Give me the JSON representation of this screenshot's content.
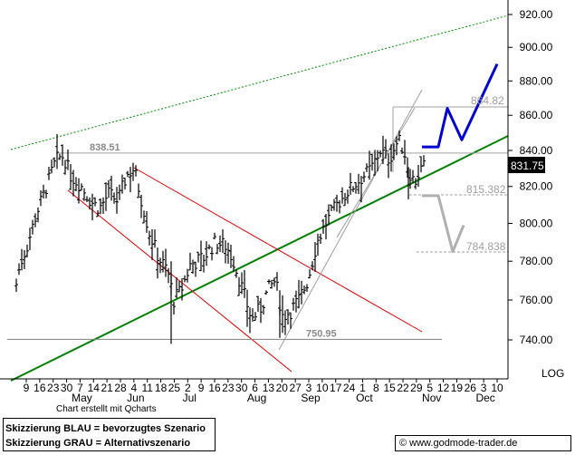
{
  "chart_data": {
    "type": "ohlc",
    "scale": "log",
    "y_ticks": [
      "920.00",
      "900.00",
      "880.00",
      "860.00",
      "840.00",
      "820.00",
      "800.00",
      "780.00",
      "760.00",
      "740.00"
    ],
    "y_axis_label": "LOG",
    "last_price": "831.75",
    "x_day_ticks": [
      "9",
      "16",
      "23",
      "30",
      "7",
      "14",
      "21",
      "28",
      "4",
      "11",
      "18",
      "25",
      "2",
      "9",
      "16",
      "23",
      "30",
      "6",
      "13",
      "20",
      "27",
      "3",
      "10",
      "17",
      "24",
      "1",
      "8",
      "15",
      "22",
      "29",
      "5",
      "12",
      "19",
      "26",
      "3",
      "10"
    ],
    "x_month_labels": [
      "May",
      "Jun",
      "Jul",
      "Aug",
      "Sep",
      "Oct",
      "Nov",
      "Dec"
    ],
    "levels": [
      {
        "label": "838.51",
        "value": 838.51
      },
      {
        "label": "750.95",
        "value": 750.95
      },
      {
        "label": "864.82",
        "value": 864.82
      },
      {
        "label": "815.382",
        "value": 815.382
      },
      {
        "label": "784.838",
        "value": 784.838
      }
    ],
    "price_summary": {
      "start": 768,
      "may_high": 838.5,
      "jun_low": 740,
      "jul_high": 803,
      "aug_low": 741,
      "oct_high": 864.8,
      "last": 831.75
    },
    "scenarios": {
      "blue_path": [
        842,
        842,
        864,
        846,
        890
      ],
      "gray_path": [
        815,
        815,
        785,
        799
      ]
    },
    "legend_entries": [
      "Skizzierung BLAU = bevorzugtes Szenario",
      "Skizzierung GRAU = Alternativszenario"
    ],
    "credit": "Chart erstellt mit Qcharts",
    "website": "www.godmode-trader.de",
    "colors": {
      "price": "#000000",
      "trend_up": "#008000",
      "upper_channel": "#009000",
      "downtrend": "#e00000",
      "levels": "#a0a0a0",
      "blue_scenario": "#0000d0",
      "gray_scenario": "#b0b0b0"
    }
  }
}
